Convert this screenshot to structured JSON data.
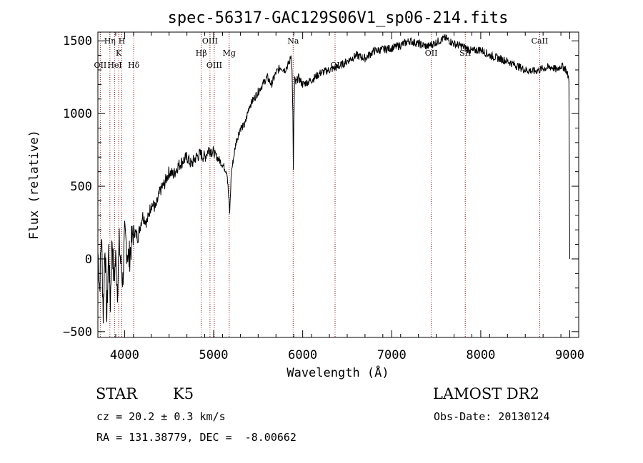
{
  "chart_data": {
    "type": "line",
    "title": "spec-56317-GAC129S06V1_sp06-214.fits",
    "xlabel": "Wavelength (Å)",
    "ylabel": "Flux (relative)",
    "xlim": [
      3700,
      9100
    ],
    "ylim": [
      -540,
      1560
    ],
    "x_ticks": [
      4000,
      5000,
      6000,
      7000,
      8000,
      9000
    ],
    "y_ticks": [
      -500,
      0,
      500,
      1000,
      1500
    ],
    "x_tick_labels": [
      "4000",
      "5000",
      "6000",
      "7000",
      "8000",
      "9000"
    ],
    "y_tick_labels": [
      "−500",
      "0",
      "500",
      "1000",
      "1500"
    ],
    "grid": false,
    "series": [
      {
        "x": [
          3700,
          3720,
          3740,
          3760,
          3780,
          3800,
          3820,
          3840,
          3860,
          3880,
          3900,
          3920,
          3940,
          3960,
          3980,
          4000,
          4050,
          4100,
          4150,
          4200,
          4250,
          4300,
          4350,
          4400,
          4450,
          4500,
          4550,
          4600,
          4650,
          4700,
          4750,
          4800,
          4850,
          4900,
          4950,
          5000,
          5050,
          5100,
          5150,
          5180,
          5200,
          5250,
          5300,
          5350,
          5400,
          5450,
          5500,
          5550,
          5600,
          5650,
          5700,
          5750,
          5800,
          5850,
          5870,
          5880,
          5890,
          5895,
          5900,
          5910,
          5920,
          5950,
          6000,
          6100,
          6200,
          6300,
          6400,
          6500,
          6600,
          6700,
          6800,
          6900,
          7000,
          7100,
          7200,
          7300,
          7400,
          7500,
          7600,
          7700,
          7800,
          7900,
          8000,
          8100,
          8200,
          8300,
          8400,
          8500,
          8600,
          8700,
          8800,
          8850,
          8900,
          8950,
          8990,
          9000
        ],
        "y": [
          50,
          -200,
          180,
          -380,
          120,
          -420,
          60,
          -300,
          150,
          -150,
          0,
          -200,
          100,
          -50,
          -150,
          150,
          0,
          200,
          150,
          300,
          250,
          380,
          350,
          470,
          520,
          600,
          580,
          640,
          670,
          700,
          650,
          700,
          720,
          700,
          760,
          730,
          690,
          650,
          600,
          320,
          600,
          800,
          900,
          920,
          1050,
          1100,
          1150,
          1200,
          1250,
          1200,
          1280,
          1320,
          1300,
          1350,
          1400,
          1300,
          1000,
          600,
          900,
          1250,
          1200,
          1250,
          1200,
          1230,
          1280,
          1300,
          1320,
          1360,
          1400,
          1380,
          1430,
          1440,
          1450,
          1470,
          1500,
          1480,
          1460,
          1490,
          1520,
          1480,
          1460,
          1430,
          1440,
          1400,
          1380,
          1360,
          1330,
          1300,
          1290,
          1310,
          1320,
          1300,
          1330,
          1310,
          1240,
          0
        ]
      }
    ],
    "lines": [
      {
        "wavelength": 3727,
        "label": "OII",
        "row": 4
      },
      {
        "wavelength": 3835,
        "label": "Hη",
        "row": 1
      },
      {
        "wavelength": 3889,
        "label": "HeI",
        "row": 4
      },
      {
        "wavelength": 3934,
        "label": "K",
        "row": 2
      },
      {
        "wavelength": 3969,
        "label": "H",
        "row": 1
      },
      {
        "wavelength": 4102,
        "label": "Hδ",
        "row": 4
      },
      {
        "wavelength": 4861,
        "label": "Hβ",
        "row": 2
      },
      {
        "wavelength": 4959,
        "label": "OIII",
        "row": 1
      },
      {
        "wavelength": 5007,
        "label": "OIII",
        "row": 3
      },
      {
        "wavelength": 5175,
        "label": "Mg",
        "row": 2
      },
      {
        "wavelength": 5893,
        "label": "Na",
        "row": 1
      },
      {
        "wavelength": 6364,
        "label": "OI",
        "row": 4
      },
      {
        "wavelength": 7444,
        "label": "OII",
        "row": 2
      },
      {
        "wavelength": 7826,
        "label": "SII",
        "row": 2
      },
      {
        "wavelength": 8662,
        "label": "CaII",
        "row": 1
      }
    ],
    "colors": {
      "spectrum": "#000000",
      "line_markers": "#8b1a1a"
    }
  },
  "info": {
    "object_class": "STAR",
    "subclass": "K5",
    "survey": "LAMOST DR2",
    "redshift": "cz = 20.2 ± 0.3 km/s",
    "obs_date": "Obs-Date: 20130124",
    "coords": "RA = 131.38779, DEC =  -8.00662"
  }
}
